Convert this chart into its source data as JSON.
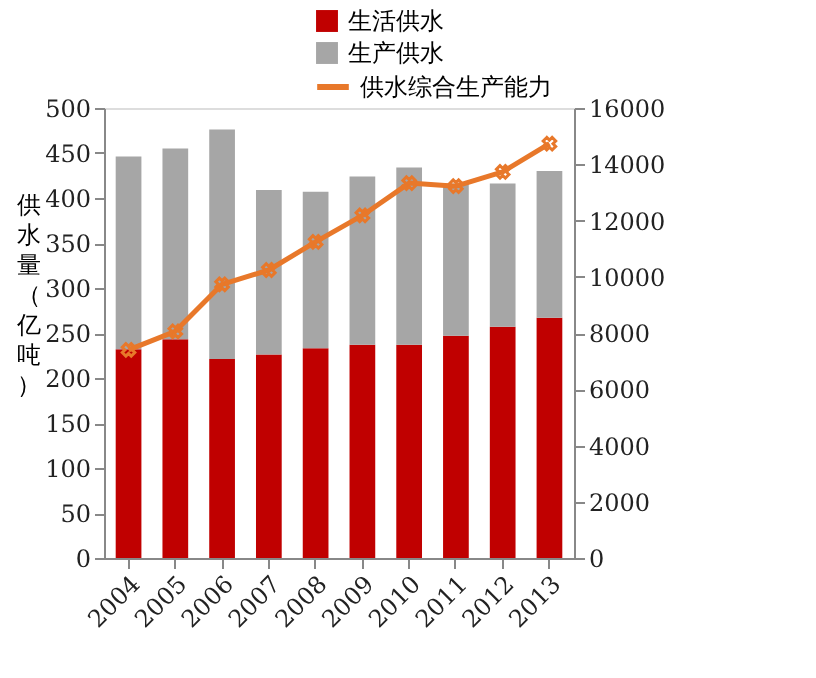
{
  "chart_data": {
    "type": "bar",
    "stacked": true,
    "legend": "top right",
    "grid": false,
    "ylabel": "供水量（亿吨）",
    "categories": [
      "2004",
      "2005",
      "2006",
      "2007",
      "2008",
      "2009",
      "2010",
      "2011",
      "2012",
      "2013"
    ],
    "ylim": [
      0,
      500
    ],
    "yticks": [
      0,
      50,
      100,
      150,
      200,
      250,
      300,
      350,
      400,
      450,
      500
    ],
    "y2lim": [
      0,
      16000
    ],
    "y2ticks": [
      0,
      2000,
      4000,
      6000,
      8000,
      10000,
      12000,
      14000,
      16000
    ],
    "series": [
      {
        "name": "生活供水",
        "color": "#c00000",
        "values": [
          232,
          243,
          221,
          226,
          233,
          237,
          237,
          247,
          257,
          267
        ]
      },
      {
        "name": "生产供水",
        "color": "#a6a6a6",
        "values": [
          214,
          212,
          255,
          183,
          174,
          187,
          197,
          169,
          159,
          163
        ]
      },
      {
        "name": "供水综合生产能力",
        "type": "line",
        "axis": "y2",
        "color": "#e8782a",
        "marker": "cross",
        "line_style": "solid",
        "values": [
          7400,
          8060,
          9730,
          10240,
          11240,
          12180,
          13330,
          13220,
          13730,
          14730
        ]
      }
    ]
  }
}
